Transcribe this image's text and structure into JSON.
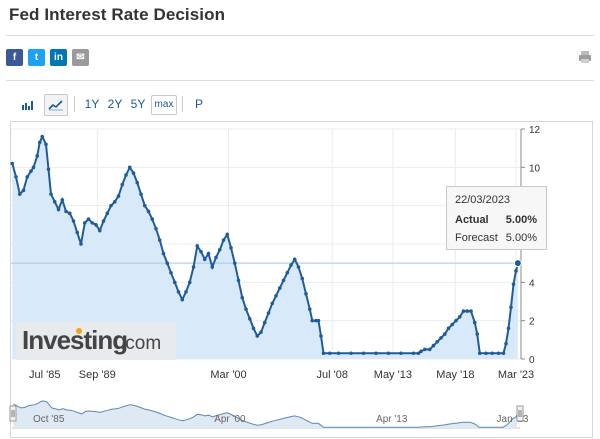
{
  "page": {
    "title": "Fed Interest Rate Decision",
    "share": [
      {
        "name": "facebook",
        "glyph": "f",
        "color": "#3b5998"
      },
      {
        "name": "twitter",
        "glyph": "t",
        "color": "#1da1f2"
      },
      {
        "name": "linkedin",
        "glyph": "in",
        "color": "#0077b5"
      },
      {
        "name": "email",
        "glyph": "✉",
        "color": "#9a9a9a"
      }
    ]
  },
  "toolbar": {
    "ranges": [
      "1Y",
      "2Y",
      "5Y",
      "max"
    ],
    "extra": "P"
  },
  "tooltip": {
    "date": "22/03/2023",
    "actual_label": "Actual",
    "actual_value": "5.00%",
    "forecast_label": "Forecast",
    "forecast_value": "5.00%"
  },
  "watermark": {
    "brand": "Investing",
    "suffix": ".com"
  },
  "colors": {
    "line": "#1f5c99",
    "fill": "#d8eaf9",
    "navigator_fill": "#dfe9f4",
    "ref_line": "#a7c7e7"
  },
  "chart_data": {
    "type": "area",
    "title": "",
    "ylim": [
      0,
      12
    ],
    "yticks": [
      0,
      2,
      4,
      6,
      8,
      10,
      12
    ],
    "xlim": [
      1982.8,
      2023.6
    ],
    "x_tick_labels": [
      {
        "label": "Jul '85",
        "x": 1985.5
      },
      {
        "label": "Sep '89",
        "x": 1989.7
      },
      {
        "label": "Mar '00",
        "x": 2000.2
      },
      {
        "label": "Jul '08",
        "x": 2008.5
      },
      {
        "label": "May '13",
        "x": 2013.35
      },
      {
        "label": "May '18",
        "x": 2018.35
      },
      {
        "label": "Mar '23",
        "x": 2023.2
      }
    ],
    "navigator_labels": [
      {
        "label": "Oct '85",
        "x": 1985.75
      },
      {
        "label": "Apr '00",
        "x": 2000.3
      },
      {
        "label": "Apr '13",
        "x": 2013.3
      },
      {
        "label": "Jan '23",
        "x": 2023.0
      }
    ],
    "reference_line": 5.0,
    "grid": true,
    "series": [
      {
        "points": [
          [
            1982.9,
            10.2
          ],
          [
            1983.2,
            9.5
          ],
          [
            1983.5,
            8.6
          ],
          [
            1983.8,
            8.8
          ],
          [
            1984.1,
            9.5
          ],
          [
            1984.4,
            9.8
          ],
          [
            1984.6,
            10.0
          ],
          [
            1984.9,
            10.6
          ],
          [
            1985.1,
            11.3
          ],
          [
            1985.3,
            11.6
          ],
          [
            1985.6,
            11.2
          ],
          [
            1985.8,
            9.9
          ],
          [
            1986.0,
            8.6
          ],
          [
            1986.3,
            8.2
          ],
          [
            1986.6,
            7.8
          ],
          [
            1986.9,
            8.3
          ],
          [
            1987.2,
            7.7
          ],
          [
            1987.5,
            7.6
          ],
          [
            1987.8,
            7.2
          ],
          [
            1988.1,
            6.6
          ],
          [
            1988.4,
            6.0
          ],
          [
            1988.7,
            7.1
          ],
          [
            1989.0,
            7.3
          ],
          [
            1989.3,
            7.1
          ],
          [
            1989.6,
            7.0
          ],
          [
            1989.9,
            6.7
          ],
          [
            1990.2,
            7.2
          ],
          [
            1990.5,
            7.6
          ],
          [
            1990.8,
            8.0
          ],
          [
            1991.1,
            8.2
          ],
          [
            1991.4,
            8.5
          ],
          [
            1991.7,
            9.1
          ],
          [
            1992.0,
            9.6
          ],
          [
            1992.3,
            10.0
          ],
          [
            1992.6,
            9.7
          ],
          [
            1992.9,
            9.2
          ],
          [
            1993.2,
            8.6
          ],
          [
            1993.5,
            8.0
          ],
          [
            1993.8,
            7.7
          ],
          [
            1994.1,
            7.3
          ],
          [
            1994.4,
            6.8
          ],
          [
            1994.7,
            6.2
          ],
          [
            1995.0,
            5.5
          ],
          [
            1995.3,
            5.0
          ],
          [
            1995.6,
            4.5
          ],
          [
            1995.9,
            4.0
          ],
          [
            1996.2,
            3.5
          ],
          [
            1996.5,
            3.1
          ],
          [
            1996.8,
            3.5
          ],
          [
            1997.1,
            4.0
          ],
          [
            1997.4,
            4.8
          ],
          [
            1997.7,
            5.9
          ],
          [
            1998.0,
            5.6
          ],
          [
            1998.3,
            5.2
          ],
          [
            1998.6,
            5.5
          ],
          [
            1998.9,
            4.8
          ],
          [
            1999.2,
            5.3
          ],
          [
            1999.5,
            5.7
          ],
          [
            1999.8,
            6.2
          ],
          [
            2000.1,
            6.5
          ],
          [
            2000.4,
            5.8
          ],
          [
            2000.7,
            5.0
          ],
          [
            2001.0,
            4.1
          ],
          [
            2001.3,
            3.2
          ],
          [
            2001.6,
            2.6
          ],
          [
            2001.9,
            2.1
          ],
          [
            2002.2,
            1.6
          ],
          [
            2002.5,
            1.2
          ],
          [
            2002.8,
            1.4
          ],
          [
            2003.1,
            1.9
          ],
          [
            2003.4,
            2.4
          ],
          [
            2003.7,
            2.9
          ],
          [
            2004.0,
            3.3
          ],
          [
            2004.3,
            3.7
          ],
          [
            2004.6,
            4.1
          ],
          [
            2004.9,
            4.5
          ],
          [
            2005.2,
            4.9
          ],
          [
            2005.5,
            5.2
          ],
          [
            2005.8,
            4.8
          ],
          [
            2006.1,
            4.2
          ],
          [
            2006.4,
            3.4
          ],
          [
            2006.7,
            2.6
          ],
          [
            2006.9,
            2.0
          ],
          [
            2007.2,
            2.0
          ],
          [
            2007.4,
            2.0
          ],
          [
            2007.6,
            1.2
          ],
          [
            2007.8,
            0.3
          ],
          [
            2008.3,
            0.3
          ],
          [
            2009.0,
            0.3
          ],
          [
            2010.0,
            0.3
          ],
          [
            2011.0,
            0.3
          ],
          [
            2012.0,
            0.3
          ],
          [
            2013.0,
            0.3
          ],
          [
            2014.0,
            0.3
          ],
          [
            2015.0,
            0.3
          ],
          [
            2015.4,
            0.3
          ],
          [
            2015.6,
            0.4
          ],
          [
            2015.9,
            0.5
          ],
          [
            2016.3,
            0.5
          ],
          [
            2016.6,
            0.7
          ],
          [
            2016.9,
            0.9
          ],
          [
            2017.2,
            1.1
          ],
          [
            2017.5,
            1.3
          ],
          [
            2017.8,
            1.6
          ],
          [
            2018.1,
            1.8
          ],
          [
            2018.4,
            2.0
          ],
          [
            2018.7,
            2.2
          ],
          [
            2019.0,
            2.5
          ],
          [
            2019.3,
            2.5
          ],
          [
            2019.6,
            2.5
          ],
          [
            2019.9,
            1.9
          ],
          [
            2020.1,
            1.3
          ],
          [
            2020.3,
            0.3
          ],
          [
            2020.8,
            0.3
          ],
          [
            2021.3,
            0.3
          ],
          [
            2021.8,
            0.3
          ],
          [
            2022.2,
            0.3
          ],
          [
            2022.4,
            0.8
          ],
          [
            2022.6,
            1.6
          ],
          [
            2022.8,
            2.7
          ],
          [
            2023.0,
            3.9
          ],
          [
            2023.2,
            4.6
          ],
          [
            2023.35,
            5.0
          ]
        ]
      }
    ]
  }
}
